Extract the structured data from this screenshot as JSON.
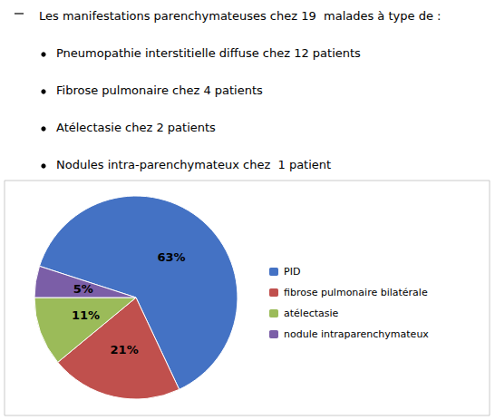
{
  "chart_data": {
    "type": "pie",
    "title": "Les manifestations parenchymateuses chez 19  malades à type de :",
    "annotations": [
      "Pneumopathie interstitielle diffuse chez 12 patients",
      "Fibrose pulmonaire chez 4 patients",
      "Atélectasie chez 2 patients",
      "Nodules intra-parenchymateux chez  1 patient"
    ],
    "categories": [
      "PID",
      "fibrose pulmonaire bilatérale",
      "atélectasie",
      "nodule intraparenchymateux"
    ],
    "values": [
      63,
      21,
      11,
      5
    ],
    "value_labels": [
      "63%",
      "21%",
      "11%",
      "5%"
    ],
    "colors": [
      "#4472C4",
      "#C0504D",
      "#9BBB59",
      "#7B5EA7"
    ],
    "data_labels": true,
    "legend": "right"
  }
}
